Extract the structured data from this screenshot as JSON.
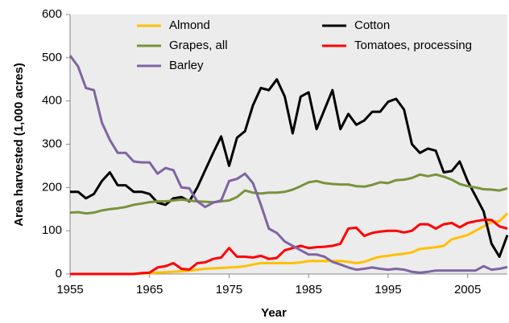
{
  "chart_data": {
    "type": "line",
    "x_label": "Year",
    "y_label": "Area harvested (1,000 acres)",
    "x": [
      1955,
      1956,
      1957,
      1958,
      1959,
      1960,
      1961,
      1962,
      1963,
      1964,
      1965,
      1966,
      1967,
      1968,
      1969,
      1970,
      1971,
      1972,
      1973,
      1974,
      1975,
      1976,
      1977,
      1978,
      1979,
      1980,
      1981,
      1982,
      1983,
      1984,
      1985,
      1986,
      1987,
      1988,
      1989,
      1990,
      1991,
      1992,
      1993,
      1994,
      1995,
      1996,
      1997,
      1998,
      1999,
      2000,
      2001,
      2002,
      2003,
      2004,
      2005,
      2006,
      2007,
      2008,
      2009,
      2010
    ],
    "xlim": [
      1955,
      2010
    ],
    "xticks": [
      1955,
      1965,
      1975,
      1985,
      1995,
      2005
    ],
    "ylim": [
      0,
      600
    ],
    "yticks": [
      0,
      100,
      200,
      300,
      400,
      500,
      600
    ],
    "series": [
      {
        "name": "Almond",
        "color": "#ffc000",
        "values": [
          0,
          0,
          0,
          0,
          0,
          0,
          0,
          0,
          0,
          1,
          2,
          3,
          4,
          5,
          6,
          8,
          10,
          12,
          13,
          14,
          15,
          16,
          18,
          22,
          25,
          25,
          25,
          25,
          25,
          27,
          30,
          30,
          30,
          30,
          30,
          28,
          25,
          28,
          35,
          40,
          42,
          45,
          47,
          50,
          58,
          60,
          62,
          65,
          80,
          85,
          90,
          100,
          110,
          120,
          122,
          140
        ]
      },
      {
        "name": "Cotton",
        "color": "#000000",
        "values": [
          190,
          190,
          175,
          185,
          215,
          235,
          205,
          205,
          190,
          190,
          185,
          165,
          160,
          175,
          178,
          168,
          200,
          240,
          280,
          318,
          250,
          315,
          330,
          390,
          430,
          425,
          450,
          410,
          325,
          410,
          420,
          335,
          380,
          425,
          335,
          370,
          345,
          355,
          375,
          375,
          398,
          405,
          380,
          300,
          280,
          290,
          285,
          235,
          238,
          260,
          215,
          180,
          145,
          70,
          40,
          90
        ]
      },
      {
        "name": "Grapes, all",
        "color": "#77933c",
        "values": [
          142,
          143,
          140,
          142,
          147,
          150,
          152,
          155,
          160,
          163,
          166,
          168,
          168,
          170,
          172,
          170,
          168,
          167,
          166,
          168,
          170,
          178,
          193,
          188,
          186,
          188,
          188,
          190,
          195,
          203,
          212,
          215,
          210,
          208,
          207,
          207,
          203,
          202,
          206,
          212,
          210,
          217,
          218,
          222,
          230,
          226,
          230,
          225,
          218,
          208,
          203,
          200,
          196,
          195,
          193,
          198
        ]
      },
      {
        "name": "Tomatoes, processing",
        "color": "#ff0000",
        "values": [
          0,
          0,
          0,
          0,
          0,
          0,
          0,
          0,
          0,
          2,
          3,
          15,
          18,
          25,
          12,
          10,
          25,
          27,
          35,
          38,
          60,
          40,
          40,
          38,
          42,
          35,
          37,
          55,
          60,
          65,
          60,
          62,
          63,
          65,
          70,
          105,
          107,
          88,
          95,
          98,
          100,
          100,
          96,
          100,
          115,
          115,
          105,
          115,
          118,
          108,
          118,
          122,
          125,
          125,
          110,
          105
        ]
      },
      {
        "name": "Barley",
        "color": "#8064a2",
        "values": [
          505,
          480,
          430,
          425,
          350,
          310,
          280,
          280,
          260,
          258,
          258,
          232,
          245,
          240,
          200,
          198,
          168,
          155,
          165,
          170,
          215,
          220,
          232,
          210,
          160,
          105,
          95,
          75,
          65,
          55,
          45,
          45,
          40,
          28,
          22,
          15,
          10,
          12,
          15,
          12,
          10,
          12,
          10,
          5,
          3,
          5,
          8,
          8,
          8,
          8,
          8,
          8,
          18,
          10,
          12,
          16
        ]
      }
    ]
  }
}
